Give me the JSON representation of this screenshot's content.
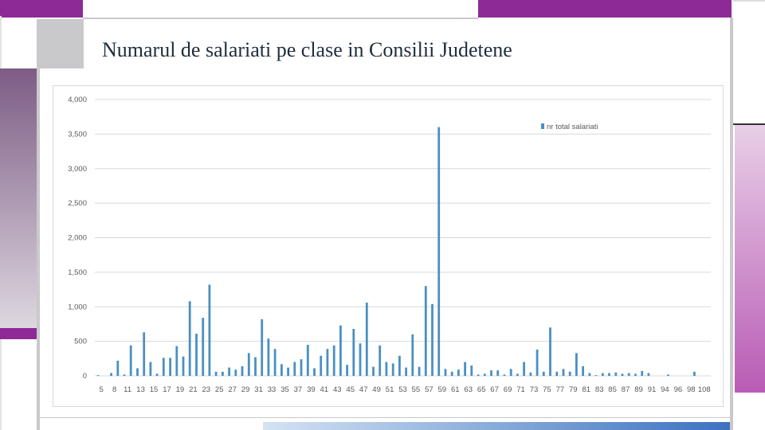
{
  "slide": {
    "title": "Numarul de  salariati pe clase in Consilii Judetene"
  },
  "colors": {
    "bar": "#4a90c2",
    "accent_purple": "#8e2a96",
    "accent_pink": "#b95bb5",
    "frame_gray": "#c9c9cc",
    "grid": "#d9d9d9"
  },
  "chart_data": {
    "type": "bar",
    "ylim": [
      0,
      4000
    ],
    "yticks": [
      "0",
      "500",
      "1,000",
      "1,500",
      "2,000",
      "2,500",
      "3,000",
      "3,500",
      "4,000"
    ],
    "ytick_values": [
      0,
      500,
      1000,
      1500,
      2000,
      2500,
      3000,
      3500,
      4000
    ],
    "legend": {
      "label": "nr total salariati",
      "position": "top-right"
    },
    "grid": true,
    "x_tick_labels": [
      "5",
      "8",
      "11",
      "13",
      "15",
      "17",
      "19",
      "21",
      "23",
      "25",
      "27",
      "29",
      "31",
      "33",
      "35",
      "37",
      "39",
      "41",
      "43",
      "45",
      "47",
      "49",
      "51",
      "53",
      "55",
      "57",
      "59",
      "61",
      "63",
      "65",
      "67",
      "69",
      "71",
      "73",
      "75",
      "77",
      "79",
      "81",
      "83",
      "85",
      "87",
      "89",
      "91",
      "94",
      "96",
      "98",
      "108"
    ],
    "categories": [
      "5",
      "6",
      "8",
      "10",
      "11",
      "12",
      "13",
      "14",
      "15",
      "16",
      "17",
      "18",
      "19",
      "20",
      "21",
      "22",
      "23",
      "24",
      "25",
      "26",
      "27",
      "28",
      "29",
      "30",
      "31",
      "32",
      "33",
      "34",
      "35",
      "36",
      "37",
      "38",
      "39",
      "40",
      "41",
      "42",
      "43",
      "44",
      "45",
      "46",
      "47",
      "48",
      "49",
      "50",
      "51",
      "52",
      "53",
      "54",
      "55",
      "56",
      "57",
      "58",
      "59",
      "60",
      "61",
      "62",
      "63",
      "64",
      "65",
      "66",
      "67",
      "68",
      "69",
      "70",
      "71",
      "72",
      "73",
      "74",
      "75",
      "76",
      "77",
      "78",
      "79",
      "80",
      "81",
      "82",
      "83",
      "84",
      "85",
      "86",
      "87",
      "88",
      "89",
      "90",
      "91",
      "92",
      "93",
      "94",
      "95",
      "96",
      "97",
      "98",
      "99",
      "108"
    ],
    "values": [
      10,
      0,
      40,
      220,
      20,
      440,
      110,
      630,
      200,
      30,
      260,
      260,
      430,
      280,
      1080,
      610,
      840,
      1320,
      60,
      60,
      120,
      90,
      140,
      330,
      270,
      820,
      540,
      390,
      170,
      120,
      200,
      240,
      450,
      110,
      290,
      390,
      440,
      730,
      160,
      680,
      470,
      1060,
      130,
      440,
      200,
      180,
      290,
      120,
      600,
      130,
      1300,
      1040,
      3600,
      100,
      60,
      90,
      200,
      150,
      20,
      30,
      80,
      80,
      20,
      100,
      30,
      200,
      50,
      380,
      60,
      700,
      60,
      100,
      60,
      330,
      140,
      40,
      10,
      40,
      40,
      50,
      30,
      40,
      30,
      70,
      40,
      0,
      0,
      20,
      0,
      0,
      0,
      60,
      0,
      0
    ],
    "series": [
      {
        "name": "nr total salariati"
      }
    ]
  }
}
